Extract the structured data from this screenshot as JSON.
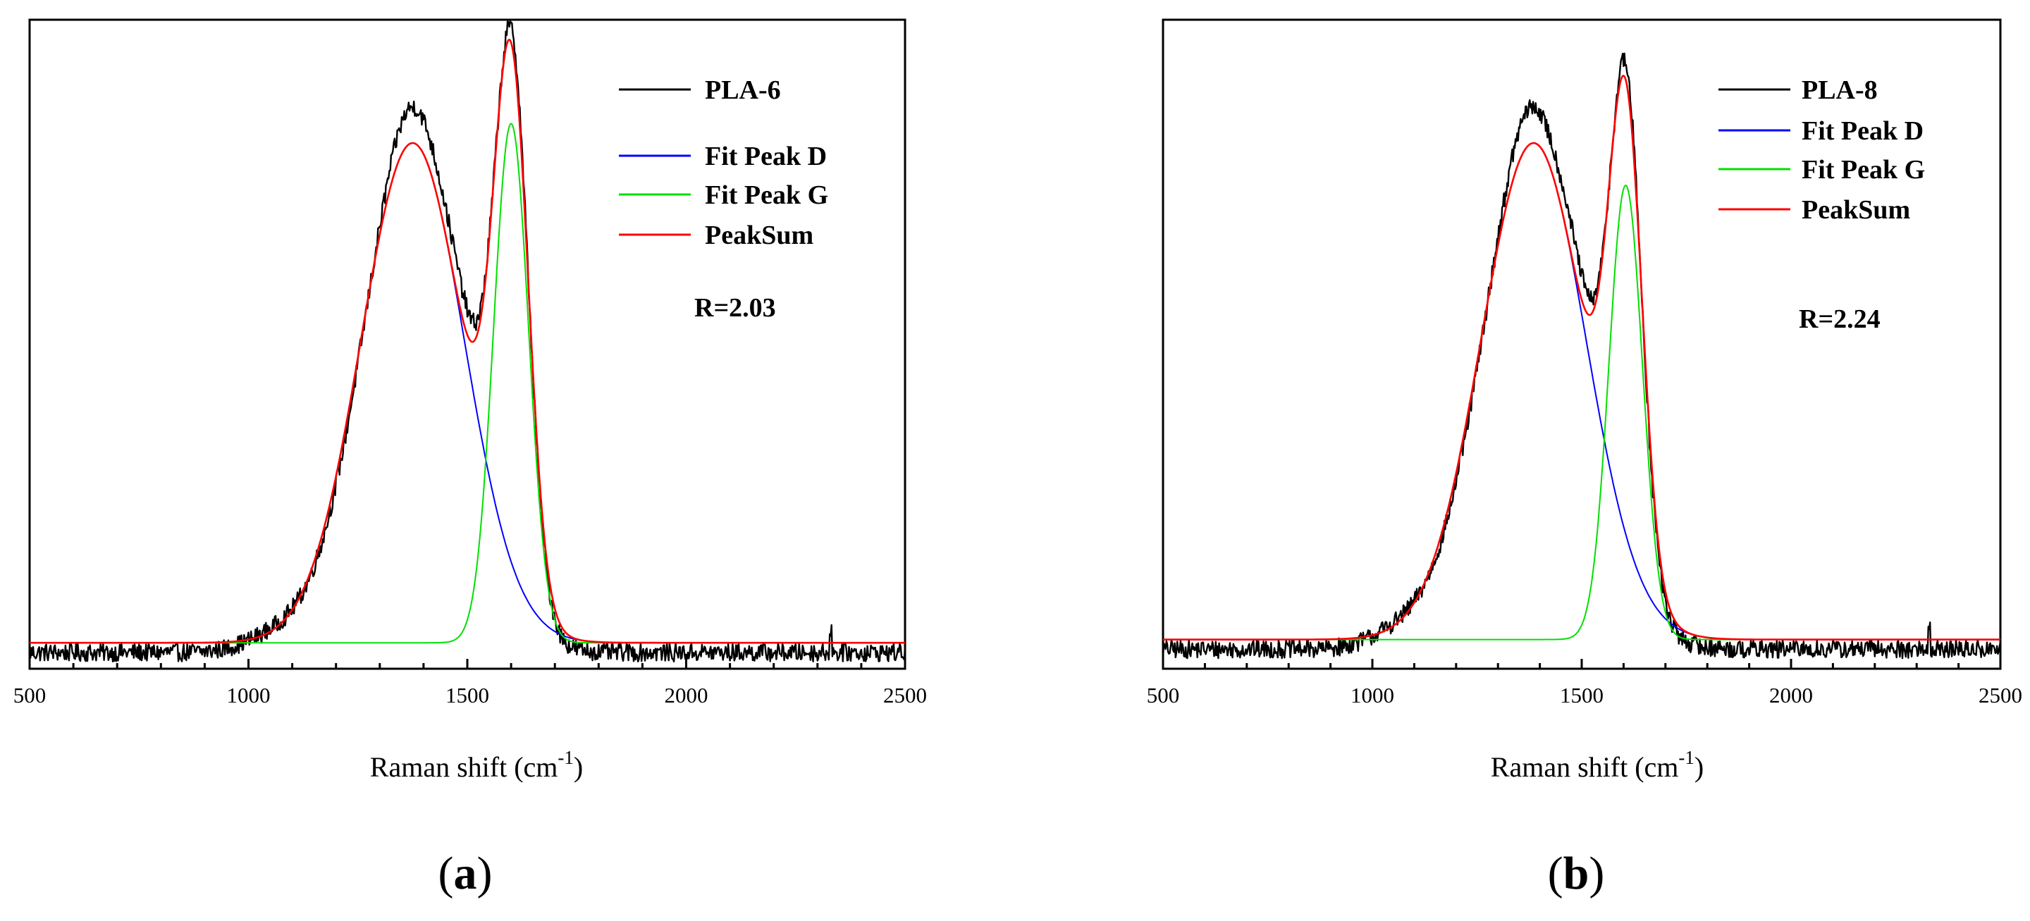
{
  "figure": {
    "panels": [
      {
        "label_open": "(",
        "label_letter": "a",
        "label_close": ")"
      },
      {
        "label_open": "(",
        "label_letter": "b",
        "label_close": ")"
      }
    ]
  },
  "colors": {
    "raw": "#000000",
    "fit_d": "#0000ff",
    "fit_g": "#00e000",
    "peaksum": "#ff0000"
  },
  "chart_data": [
    {
      "type": "line",
      "title": "",
      "xlabel": "Raman shift (cm",
      "xlabel_sup": "-1",
      "xlabel_close": ")",
      "ylabel": "",
      "xlim": [
        500,
        2500
      ],
      "ylim": [
        0,
        1.0
      ],
      "xticks": [
        500,
        1000,
        1500,
        2000,
        2500
      ],
      "legend_position": "top-right",
      "annotation": "R=2.03",
      "baseline": 0.04,
      "spike_x": 2330,
      "series": [
        {
          "name": "PLA-6",
          "kind": "raw",
          "color_key": "raw"
        },
        {
          "name": "Fit Peak D",
          "kind": "gauss",
          "center": 1375,
          "height": 0.77,
          "sigma": 118,
          "color_key": "fit_d"
        },
        {
          "name": "Fit Peak G",
          "kind": "gauss",
          "center": 1600,
          "height": 0.8,
          "sigma": 40,
          "color_key": "fit_g"
        },
        {
          "name": "PeakSum",
          "kind": "sum",
          "color_key": "peaksum"
        }
      ]
    },
    {
      "type": "line",
      "title": "",
      "xlabel": "Raman shift (cm",
      "xlabel_sup": "-1",
      "xlabel_close": ")",
      "ylabel": "",
      "xlim": [
        500,
        2500
      ],
      "ylim": [
        0,
        1.0
      ],
      "xticks": [
        500,
        1000,
        1500,
        2000,
        2500
      ],
      "legend_position": "top-right",
      "annotation": "R=2.24",
      "baseline": 0.045,
      "spike_x": 2330,
      "series": [
        {
          "name": "PLA-8",
          "kind": "raw",
          "color_key": "raw"
        },
        {
          "name": "Fit Peak D",
          "kind": "gauss",
          "center": 1385,
          "height": 0.765,
          "sigma": 125,
          "color_key": "fit_d"
        },
        {
          "name": "Fit Peak G",
          "kind": "gauss",
          "center": 1605,
          "height": 0.7,
          "sigma": 40,
          "color_key": "fit_g"
        },
        {
          "name": "PeakSum",
          "kind": "sum",
          "color_key": "peaksum"
        }
      ]
    }
  ]
}
